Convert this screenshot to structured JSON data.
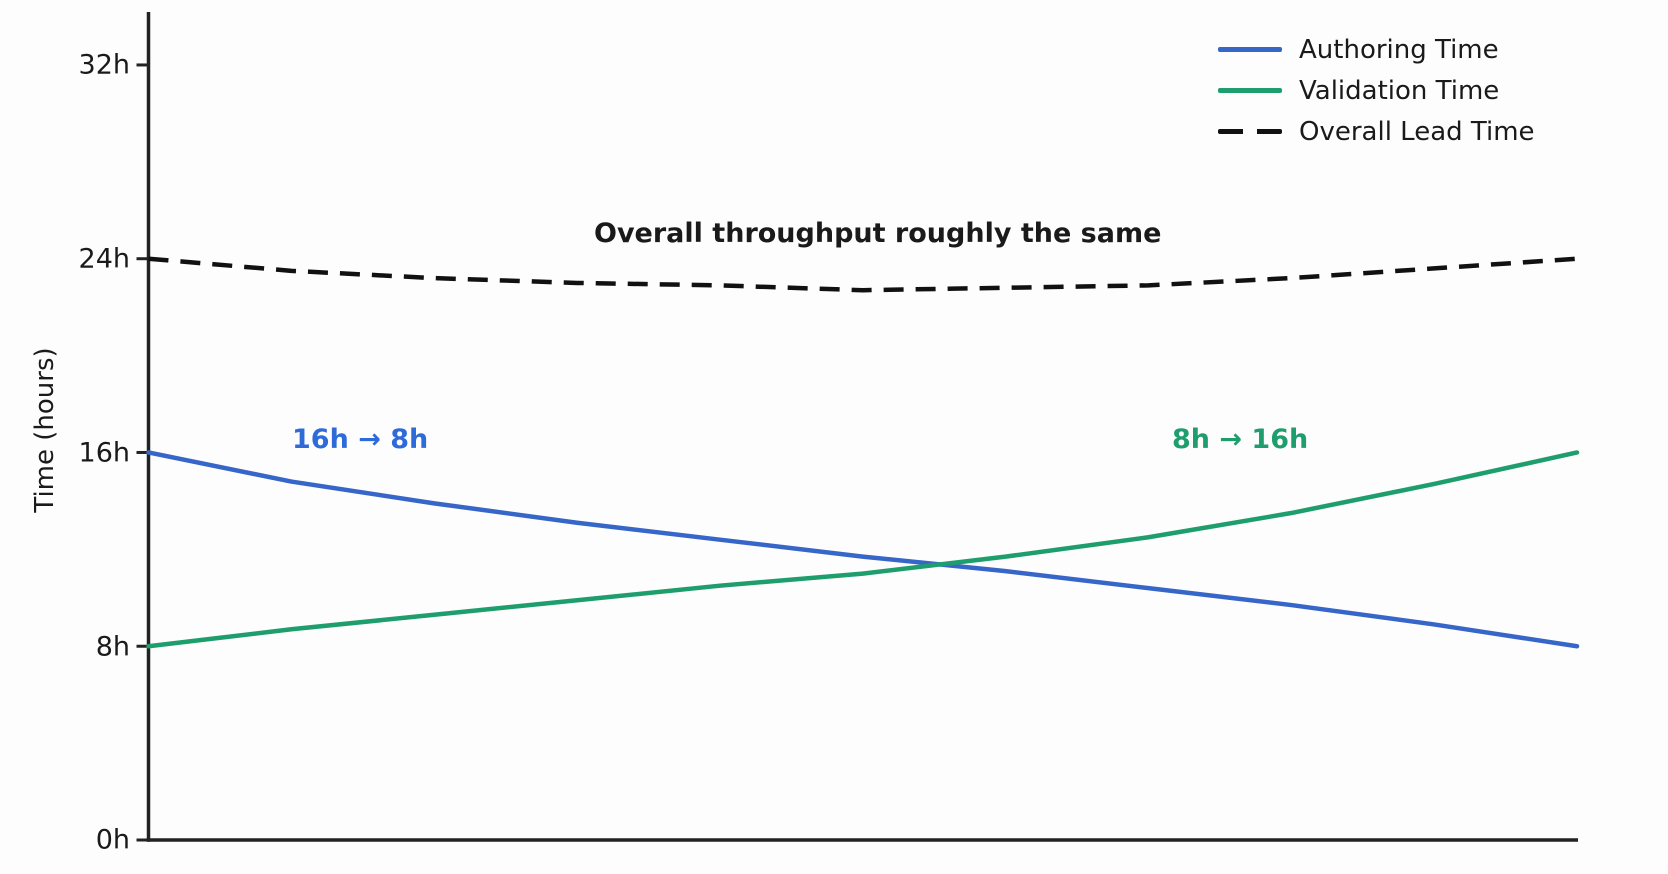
{
  "figure": {
    "background": "#fdfdfe",
    "text_color": "#1a1a1a"
  },
  "legend": {
    "items": [
      {
        "label": "Authoring Time",
        "color": "#3766c9",
        "style": "solid"
      },
      {
        "label": "Validation Time",
        "color": "#1f9e6d",
        "style": "solid"
      },
      {
        "label": "Overall Lead Time",
        "color": "#111111",
        "style": "dashed"
      }
    ]
  },
  "annotations": [
    {
      "text": "Overall throughput roughly the same",
      "color": "#1a1a1a"
    },
    {
      "text": "16h → 8h",
      "color": "#2e6bd8"
    },
    {
      "text": "8h → 16h",
      "color": "#1f9e6d"
    }
  ],
  "chart_data": {
    "type": "line",
    "title": "",
    "xlabel": "",
    "ylabel": "Time (hours)",
    "ylim": [
      0,
      33
    ],
    "grid": false,
    "legend_position": "upper right",
    "x_axis_tick_labels_visible": false,
    "y_ticks": [
      {
        "value": 0,
        "label": "0h"
      },
      {
        "value": 8,
        "label": "8h"
      },
      {
        "value": 16,
        "label": "16h"
      },
      {
        "value": 24,
        "label": "24h"
      },
      {
        "value": 32,
        "label": "32h"
      }
    ],
    "x_normalized": [
      0,
      0.1,
      0.2,
      0.3,
      0.4,
      0.5,
      0.6,
      0.7,
      0.8,
      0.9,
      1.0
    ],
    "series": [
      {
        "name": "Authoring Time",
        "color": "#3766c9",
        "dash": false,
        "start_label": "16h",
        "end_label": "8h",
        "values": [
          16.0,
          14.8,
          13.9,
          13.1,
          12.4,
          11.7,
          11.1,
          10.4,
          9.7,
          8.9,
          8.0
        ]
      },
      {
        "name": "Validation Time",
        "color": "#1f9e6d",
        "dash": false,
        "start_label": "8h",
        "end_label": "16h",
        "values": [
          8.0,
          8.7,
          9.3,
          9.9,
          10.5,
          11.0,
          11.7,
          12.5,
          13.5,
          14.7,
          16.0
        ]
      },
      {
        "name": "Overall Lead Time",
        "color": "#111111",
        "dash": true,
        "start_label": "24h",
        "end_label": "24h",
        "values": [
          24.0,
          23.5,
          23.2,
          23.0,
          22.9,
          22.7,
          22.8,
          22.9,
          23.2,
          23.6,
          24.0
        ]
      }
    ]
  }
}
